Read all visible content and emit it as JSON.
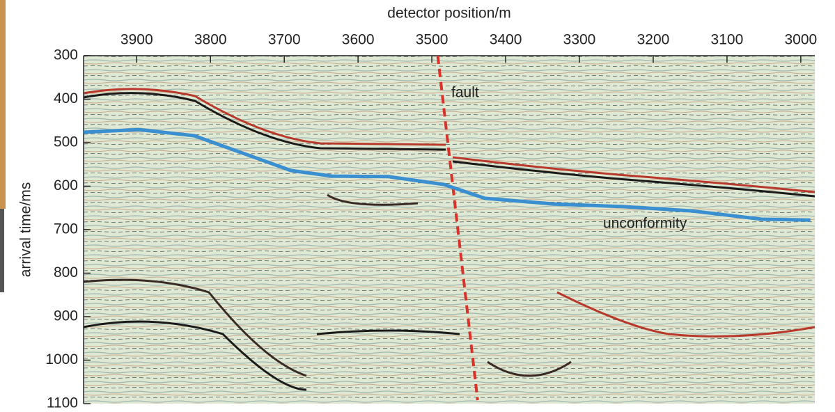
{
  "chart_data": {
    "type": "line",
    "xlabel": "detector position/m",
    "ylabel": "arrival time/ms",
    "xlim": [
      3972,
      2981
    ],
    "ylim": [
      1100,
      300
    ],
    "xticks": [
      3900,
      3800,
      3700,
      3600,
      3500,
      3400,
      3300,
      3200,
      3100,
      3000
    ],
    "yticks": [
      300,
      400,
      500,
      600,
      700,
      800,
      900,
      1000,
      1100
    ],
    "series": [
      {
        "name": "fault",
        "color": "#d8322a",
        "dashed": true,
        "x": [
          3492,
          3438
        ],
        "values": [
          300,
          1092
        ]
      },
      {
        "name": "unconformity",
        "color": "#3a8fd0",
        "dashed": false,
        "x": [
          3972,
          3897,
          3822,
          3691,
          3635,
          3559,
          3484,
          3428,
          3334,
          3241,
          3147,
          3053,
          2987
        ],
        "values": [
          476,
          470,
          484,
          564,
          577,
          578,
          596,
          628,
          641,
          647,
          657,
          676,
          678
        ]
      }
    ]
  }
}
